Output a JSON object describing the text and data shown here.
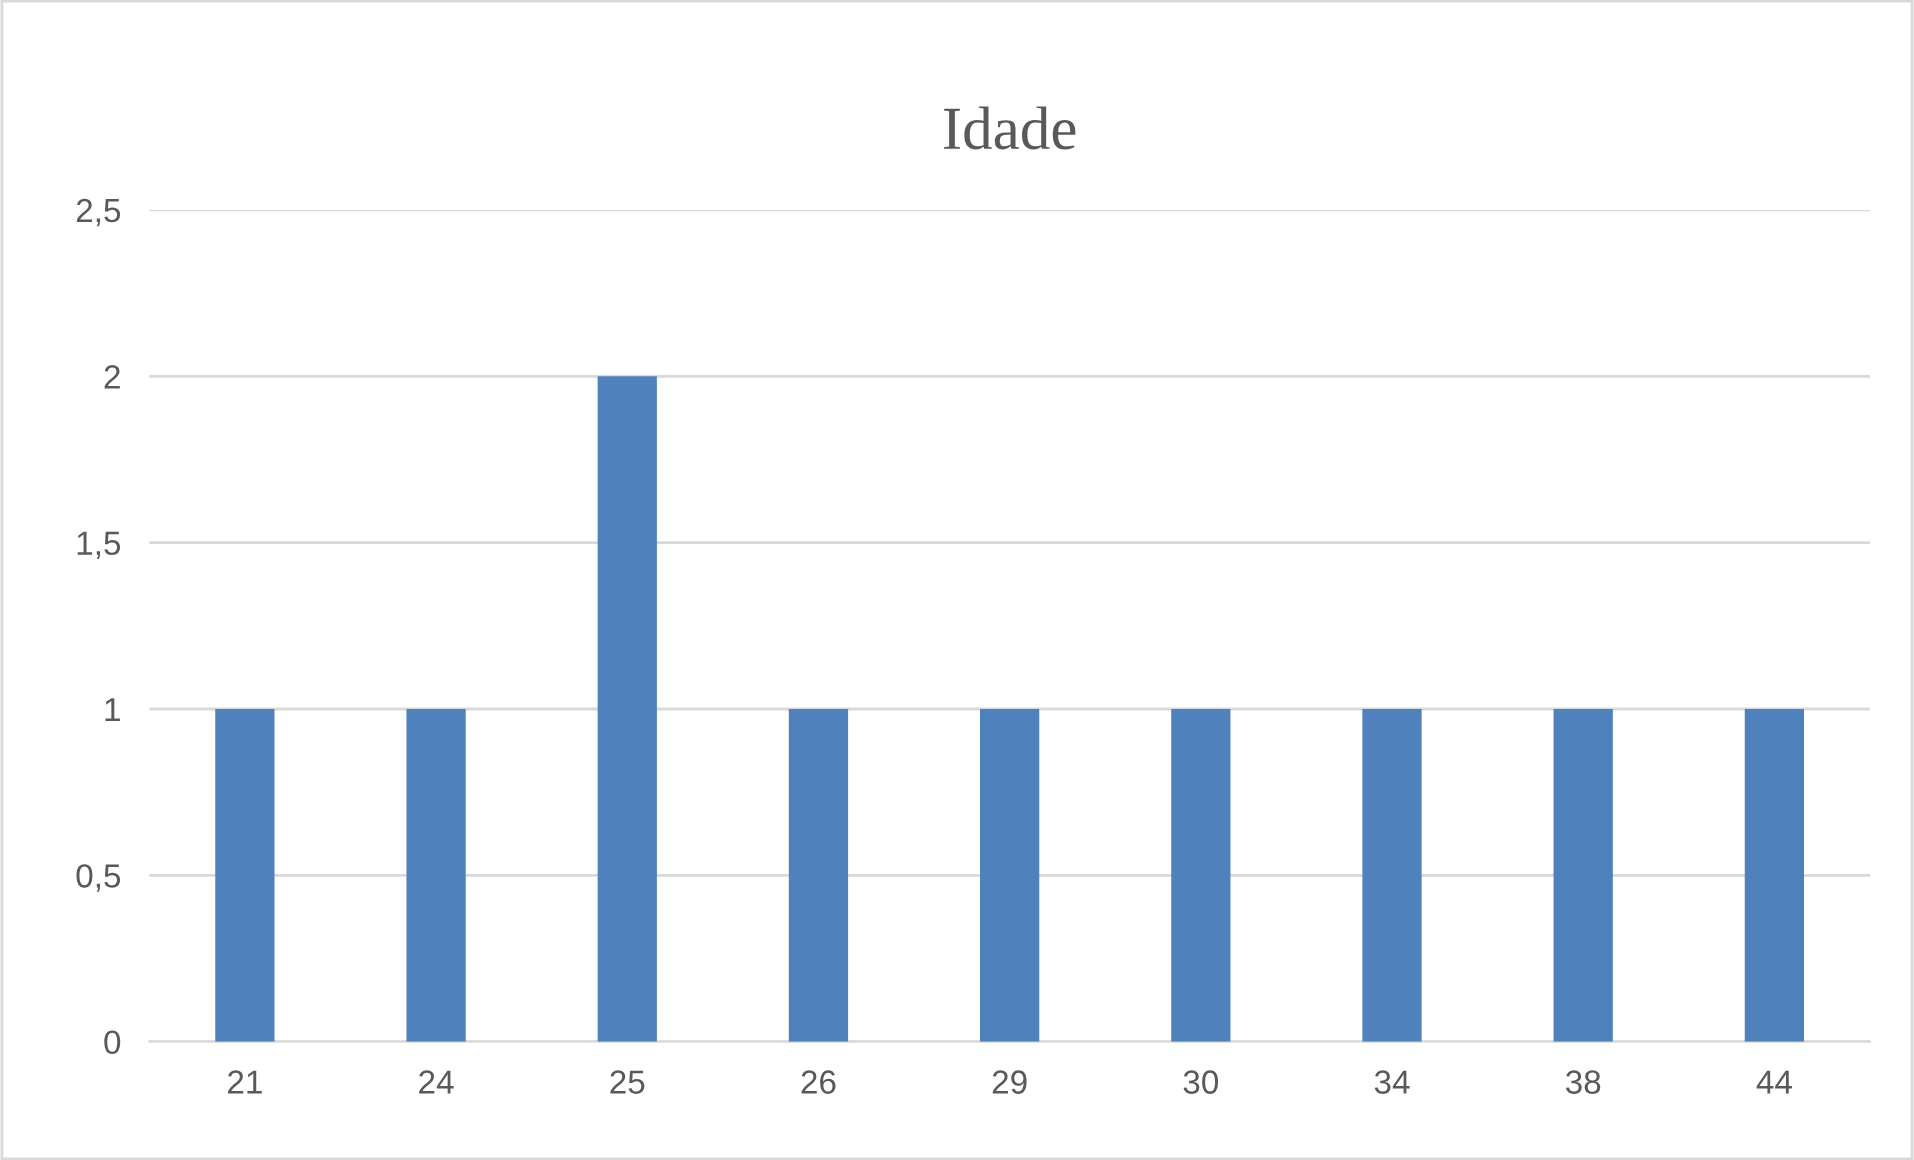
{
  "chart_data": {
    "type": "bar",
    "title": "Idade",
    "categories": [
      "21",
      "24",
      "25",
      "26",
      "29",
      "30",
      "34",
      "38",
      "44"
    ],
    "values": [
      1,
      1,
      2,
      1,
      1,
      1,
      1,
      1,
      1
    ],
    "color": "#4f81bd",
    "ylim": [
      0,
      2.5
    ],
    "yticks": [
      0,
      {
        "value": 0.5,
        "label": "0,5"
      },
      1,
      {
        "value": 1.5,
        "label": "1,5"
      },
      2,
      {
        "value": 2.5,
        "label": "2,5"
      }
    ],
    "grid": "y"
  }
}
